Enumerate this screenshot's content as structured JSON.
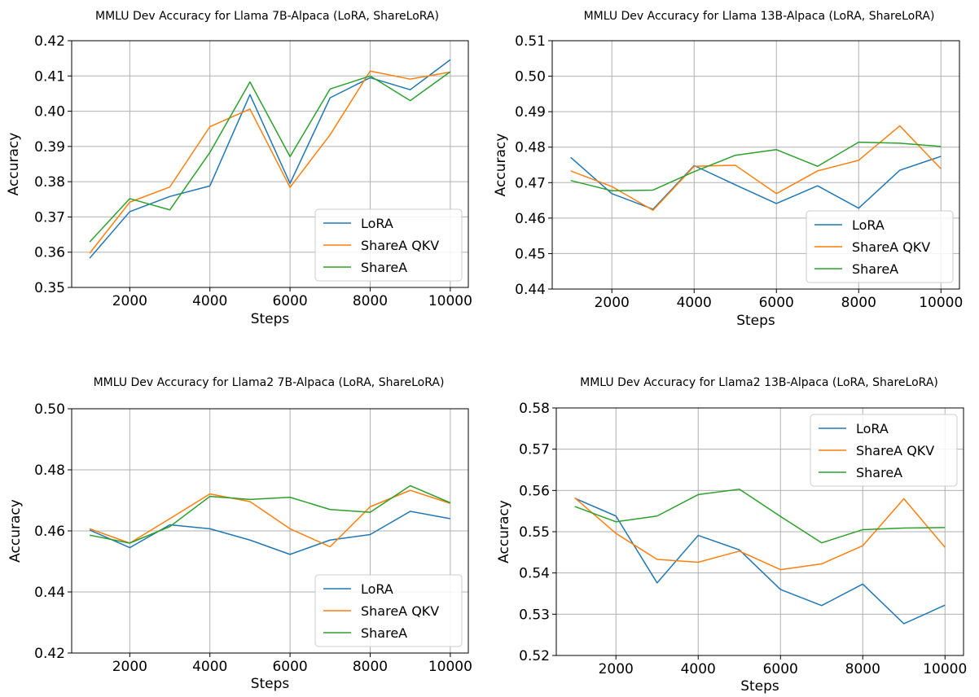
{
  "chart_data": [
    {
      "type": "line",
      "title": "MMLU Dev Accuracy for Llama 7B-Alpaca (LoRA, ShareLoRA)",
      "xlabel": "Steps",
      "ylabel": "Accuracy",
      "x": [
        1000,
        2000,
        3000,
        4000,
        5000,
        6000,
        7000,
        8000,
        9000,
        10000
      ],
      "xticks": [
        2000,
        4000,
        6000,
        8000,
        10000
      ],
      "xtick_labels": [
        "2000",
        "4000",
        "6000",
        "8000",
        "10000"
      ],
      "xlim": [
        550,
        10450
      ],
      "ylim": [
        0.35,
        0.42
      ],
      "yticks": [
        0.35,
        0.36,
        0.37,
        0.38,
        0.39,
        0.4,
        0.41,
        0.42
      ],
      "ytick_labels": [
        "0.35",
        "0.36",
        "0.37",
        "0.38",
        "0.39",
        "0.40",
        "0.41",
        "0.42"
      ],
      "grid": true,
      "legend": "lower-right",
      "series": [
        {
          "name": "LoRA",
          "color": "#1f77b4",
          "values": [
            0.3583,
            0.3715,
            0.3758,
            0.3788,
            0.4047,
            0.3795,
            0.4038,
            0.4095,
            0.4061,
            0.4146
          ]
        },
        {
          "name": "ShareA QKV",
          "color": "#ff7f0e",
          "values": [
            0.3597,
            0.3742,
            0.3785,
            0.3956,
            0.4006,
            0.3784,
            0.3933,
            0.4114,
            0.4091,
            0.4111
          ]
        },
        {
          "name": "ShareA",
          "color": "#2ca02c",
          "values": [
            0.3629,
            0.3752,
            0.372,
            0.3883,
            0.4083,
            0.3871,
            0.4063,
            0.41,
            0.403,
            0.4112
          ]
        }
      ]
    },
    {
      "type": "line",
      "title": "MMLU Dev Accuracy for Llama 13B-Alpaca (LoRA, ShareLoRA)",
      "xlabel": "Steps",
      "ylabel": "Accuracy",
      "x": [
        1000,
        2000,
        3000,
        4000,
        5000,
        6000,
        7000,
        8000,
        9000,
        10000
      ],
      "xticks": [
        2000,
        4000,
        6000,
        8000,
        10000
      ],
      "xtick_labels": [
        "2000",
        "4000",
        "6000",
        "8000",
        "10000"
      ],
      "xlim": [
        550,
        10450
      ],
      "ylim": [
        0.44,
        0.51
      ],
      "yticks": [
        0.44,
        0.45,
        0.46,
        0.47,
        0.48,
        0.49,
        0.5,
        0.51
      ],
      "ytick_labels": [
        "0.44",
        "0.45",
        "0.46",
        "0.47",
        "0.48",
        "0.49",
        "0.50",
        "0.51"
      ],
      "grid": true,
      "legend": "lower-right",
      "series": [
        {
          "name": "LoRA",
          "color": "#1f77b4",
          "values": [
            0.4771,
            0.4669,
            0.4625,
            0.4748,
            0.4694,
            0.4641,
            0.4691,
            0.4628,
            0.4735,
            0.4774
          ]
        },
        {
          "name": "ShareA QKV",
          "color": "#ff7f0e",
          "values": [
            0.4733,
            0.4689,
            0.4622,
            0.4746,
            0.4749,
            0.4669,
            0.4733,
            0.4763,
            0.486,
            0.4739
          ]
        },
        {
          "name": "ShareA",
          "color": "#2ca02c",
          "values": [
            0.4706,
            0.4677,
            0.4679,
            0.4731,
            0.4777,
            0.4793,
            0.4746,
            0.4814,
            0.4811,
            0.4802
          ]
        }
      ]
    },
    {
      "type": "line",
      "title": "MMLU Dev Accuracy for Llama2 7B-Alpaca (LoRA, ShareLoRA)",
      "xlabel": "Steps",
      "ylabel": "Accuracy",
      "x": [
        1000,
        2000,
        3000,
        4000,
        5000,
        6000,
        7000,
        8000,
        9000,
        10000
      ],
      "xticks": [
        2000,
        4000,
        6000,
        8000,
        10000
      ],
      "xtick_labels": [
        "2000",
        "4000",
        "6000",
        "8000",
        "10000"
      ],
      "xlim": [
        550,
        10450
      ],
      "ylim": [
        0.42,
        0.5
      ],
      "yticks": [
        0.42,
        0.44,
        0.46,
        0.48,
        0.5
      ],
      "ytick_labels": [
        "0.42",
        "0.44",
        "0.46",
        "0.48",
        "0.50"
      ],
      "grid": true,
      "legend": "lower-right",
      "series": [
        {
          "name": "LoRA",
          "color": "#1f77b4",
          "values": [
            0.4603,
            0.4545,
            0.462,
            0.4607,
            0.457,
            0.4523,
            0.457,
            0.4588,
            0.4664,
            0.464
          ]
        },
        {
          "name": "ShareA QKV",
          "color": "#ff7f0e",
          "values": [
            0.4607,
            0.456,
            0.464,
            0.4721,
            0.4696,
            0.4607,
            0.4548,
            0.4679,
            0.4733,
            0.469
          ]
        },
        {
          "name": "ShareA",
          "color": "#2ca02c",
          "values": [
            0.4586,
            0.456,
            0.4614,
            0.4713,
            0.4703,
            0.471,
            0.467,
            0.4661,
            0.4748,
            0.4692
          ]
        }
      ]
    },
    {
      "type": "line",
      "title": "MMLU Dev Accuracy for Llama2 13B-Alpaca (LoRA, ShareLoRA)",
      "xlabel": "Steps",
      "ylabel": "Accuracy",
      "x": [
        1000,
        2000,
        3000,
        4000,
        5000,
        6000,
        7000,
        8000,
        9000,
        10000
      ],
      "xticks": [
        2000,
        4000,
        6000,
        8000,
        10000
      ],
      "xtick_labels": [
        "2000",
        "4000",
        "6000",
        "8000",
        "10000"
      ],
      "xlim": [
        550,
        10450
      ],
      "ylim": [
        0.52,
        0.58
      ],
      "yticks": [
        0.52,
        0.53,
        0.54,
        0.55,
        0.56,
        0.57,
        0.58
      ],
      "ytick_labels": [
        "0.52",
        "0.53",
        "0.54",
        "0.55",
        "0.56",
        "0.57",
        "0.58"
      ],
      "grid": true,
      "legend": "upper-right",
      "series": [
        {
          "name": "LoRA",
          "color": "#1f77b4",
          "values": [
            0.5581,
            0.5538,
            0.5376,
            0.5491,
            0.5456,
            0.536,
            0.5321,
            0.5373,
            0.5277,
            0.5322
          ]
        },
        {
          "name": "ShareA QKV",
          "color": "#ff7f0e",
          "values": [
            0.5582,
            0.5496,
            0.5433,
            0.5426,
            0.5453,
            0.5408,
            0.5422,
            0.5466,
            0.558,
            0.5462
          ]
        },
        {
          "name": "ShareA",
          "color": "#2ca02c",
          "values": [
            0.5561,
            0.5524,
            0.5538,
            0.559,
            0.5603,
            0.5537,
            0.5473,
            0.5505,
            0.5509,
            0.551
          ]
        }
      ]
    }
  ]
}
